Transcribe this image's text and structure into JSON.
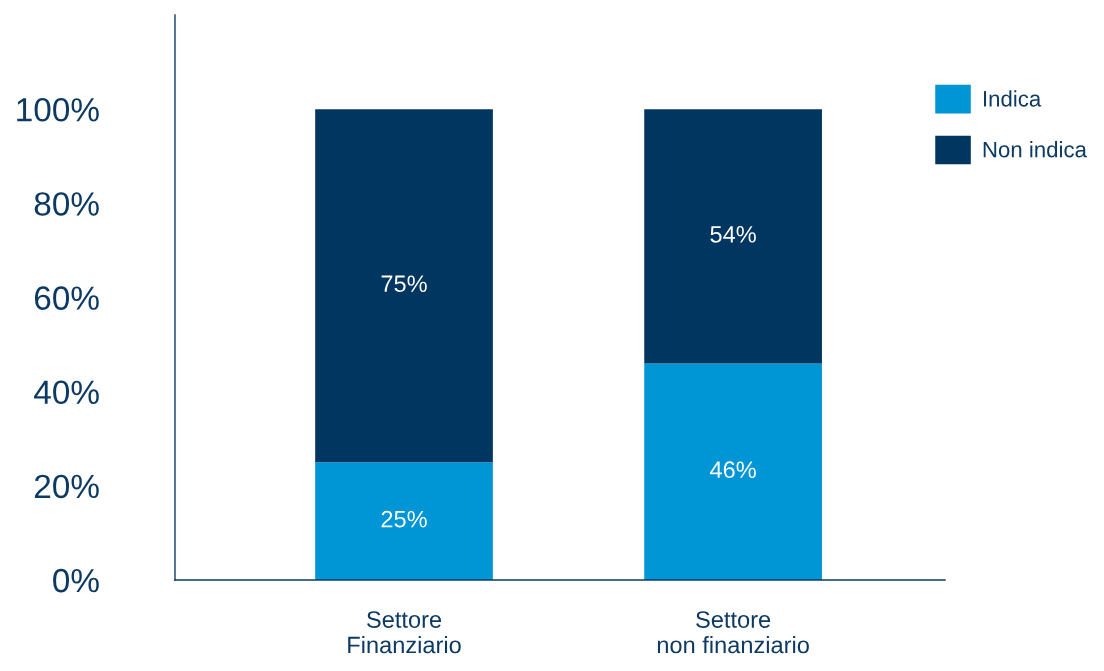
{
  "chart_data": {
    "type": "bar",
    "stacked": true,
    "categories": [
      "Settore\nFinanziario",
      "Settore\nnon finanziario"
    ],
    "series": [
      {
        "name": "Indica",
        "color": "#0096d6",
        "values": [
          25,
          46
        ]
      },
      {
        "name": "Non indica",
        "color": "#00365f",
        "values": [
          75,
          54
        ]
      }
    ],
    "ylim": [
      0,
      120
    ],
    "yticks": [
      {
        "value": 0,
        "label": "0%"
      },
      {
        "value": 20,
        "label": "20%"
      },
      {
        "value": 40,
        "label": "40%"
      },
      {
        "value": 60,
        "label": "60%"
      },
      {
        "value": 80,
        "label": "80%"
      },
      {
        "value": 100,
        "label": "100%"
      }
    ],
    "value_labels": [
      [
        "25%",
        "46%"
      ],
      [
        "75%",
        "54%"
      ]
    ],
    "grid": false,
    "legend": "top right"
  }
}
